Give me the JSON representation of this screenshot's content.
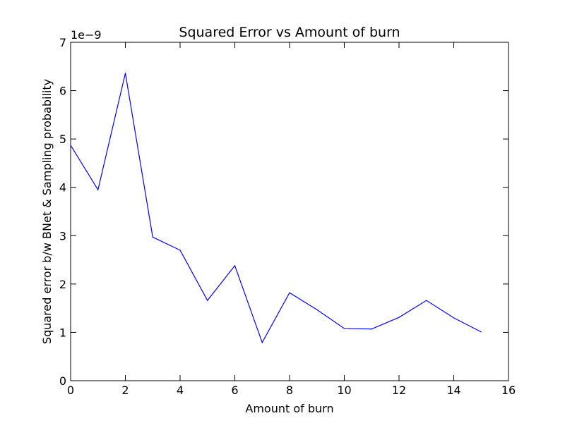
{
  "chart_data": {
    "type": "line",
    "title": "Squared Error vs Amount of burn",
    "xlabel": "Amount of burn",
    "ylabel": "Squared error b/w BNet & Sampling probability",
    "offset_label": "1e−9",
    "xlim": [
      0,
      16
    ],
    "ylim": [
      0,
      7
    ],
    "xticks": [
      0,
      2,
      4,
      6,
      8,
      10,
      12,
      14,
      16
    ],
    "yticks": [
      0,
      1,
      2,
      3,
      4,
      5,
      6,
      7
    ],
    "grid": false,
    "line_color": "#0000ff",
    "series": [
      {
        "x": [
          0,
          1,
          2,
          3,
          4,
          5,
          6,
          7,
          8,
          9,
          10,
          11,
          12,
          13,
          14,
          15
        ],
        "values": [
          4.87,
          3.95,
          6.36,
          2.97,
          2.7,
          1.66,
          2.38,
          0.79,
          1.82,
          1.47,
          1.08,
          1.07,
          1.31,
          1.66,
          1.3,
          1.01
        ]
      }
    ]
  }
}
